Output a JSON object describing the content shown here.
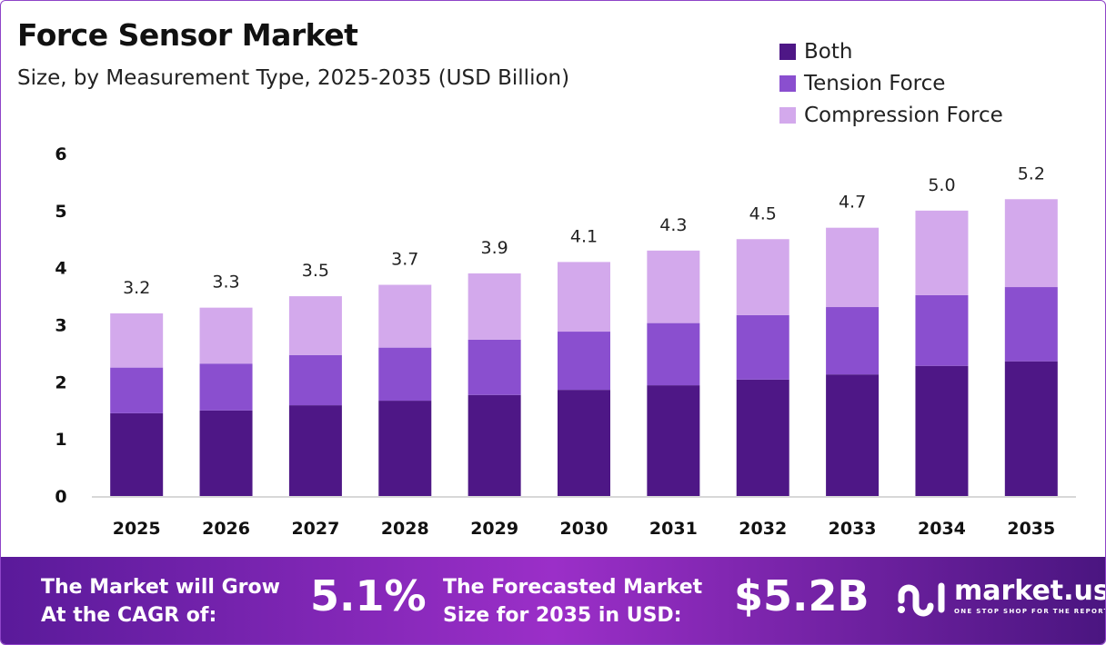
{
  "header": {
    "title": "Force Sensor Market",
    "subtitle": "Size, by Measurement Type, 2025-2035 (USD Billion)"
  },
  "chart_data": {
    "type": "bar",
    "stacked": true,
    "title": "Force Sensor Market",
    "subtitle": "Size, by Measurement Type, 2025-2035 (USD Billion)",
    "categories": [
      "2025",
      "2026",
      "2027",
      "2028",
      "2029",
      "2030",
      "2031",
      "2032",
      "2033",
      "2034",
      "2035"
    ],
    "series": [
      {
        "name": "Both",
        "color": "#4e1786",
        "values": [
          1.45,
          1.5,
          1.59,
          1.67,
          1.77,
          1.86,
          1.94,
          2.04,
          2.13,
          2.28,
          2.36
        ]
      },
      {
        "name": "Tension Force",
        "color": "#8a4fcf",
        "values": [
          0.8,
          0.82,
          0.88,
          0.93,
          0.97,
          1.02,
          1.09,
          1.13,
          1.18,
          1.24,
          1.3
        ]
      },
      {
        "name": "Compression Force",
        "color": "#d3a9ec",
        "values": [
          0.95,
          0.98,
          1.03,
          1.1,
          1.16,
          1.22,
          1.27,
          1.33,
          1.39,
          1.48,
          1.54
        ]
      }
    ],
    "totals": [
      "3.2",
      "3.3",
      "3.5",
      "3.7",
      "3.9",
      "4.1",
      "4.3",
      "4.5",
      "4.7",
      "5.0",
      "5.2"
    ],
    "yticks": [
      "0",
      "1",
      "2",
      "3",
      "4",
      "5",
      "6"
    ],
    "ylim": [
      0,
      6
    ],
    "grid": false,
    "legend": "top-right"
  },
  "footer": {
    "cagr_label_1": "The Market will Grow",
    "cagr_label_2": "At the CAGR of:",
    "cagr_value": "5.1%",
    "forecast_label_1": "The Forecasted Market",
    "forecast_label_2": "Size for 2035 in USD:",
    "forecast_value": "$5.2B",
    "logo_name": "market.us",
    "logo_tagline": "ONE STOP SHOP FOR THE REPORTS"
  }
}
